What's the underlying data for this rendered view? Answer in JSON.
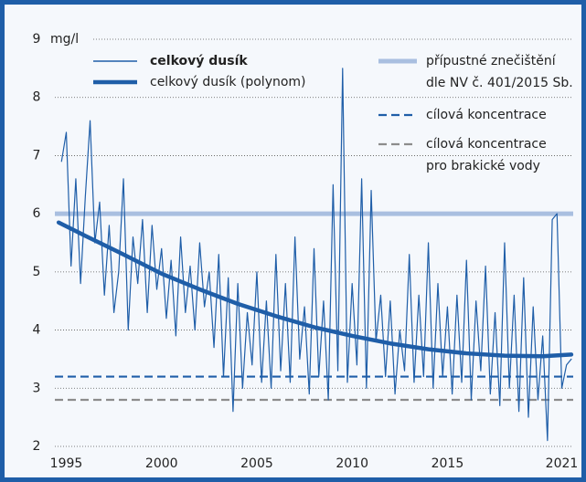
{
  "chart_data": {
    "type": "line",
    "y_unit": "mg/l",
    "xlim": [
      1994.4,
      2021.6
    ],
    "xticks": [
      1995,
      2000,
      2005,
      2010,
      2015,
      2021
    ],
    "ylim": [
      2,
      9
    ],
    "yticks": [
      2,
      3,
      4,
      5,
      6,
      7,
      8,
      9
    ],
    "grid": true,
    "series": [
      {
        "name": "celkový dusík",
        "color": "#1f5ea8",
        "x": [
          1994.75,
          1995.0,
          1995.25,
          1995.5,
          1995.75,
          1996.0,
          1996.25,
          1996.5,
          1996.75,
          1997.0,
          1997.25,
          1997.5,
          1997.75,
          1998.0,
          1998.25,
          1998.5,
          1998.75,
          1999.0,
          1999.25,
          1999.5,
          1999.75,
          2000.0,
          2000.25,
          2000.5,
          2000.75,
          2001.0,
          2001.25,
          2001.5,
          2001.75,
          2002.0,
          2002.25,
          2002.5,
          2002.75,
          2003.0,
          2003.25,
          2003.5,
          2003.75,
          2004.0,
          2004.25,
          2004.5,
          2004.75,
          2005.0,
          2005.25,
          2005.5,
          2005.75,
          2006.0,
          2006.25,
          2006.5,
          2006.75,
          2007.0,
          2007.25,
          2007.5,
          2007.75,
          2008.0,
          2008.25,
          2008.5,
          2008.75,
          2009.0,
          2009.25,
          2009.5,
          2009.75,
          2010.0,
          2010.25,
          2010.5,
          2010.75,
          2011.0,
          2011.25,
          2011.5,
          2011.75,
          2012.0,
          2012.25,
          2012.5,
          2012.75,
          2013.0,
          2013.25,
          2013.5,
          2013.75,
          2014.0,
          2014.25,
          2014.5,
          2014.75,
          2015.0,
          2015.25,
          2015.5,
          2015.75,
          2016.0,
          2016.25,
          2016.5,
          2016.75,
          2017.0,
          2017.25,
          2017.5,
          2017.75,
          2018.0,
          2018.25,
          2018.5,
          2018.75,
          2019.0,
          2019.25,
          2019.5,
          2019.75,
          2020.0,
          2020.25,
          2020.5,
          2020.75,
          2021.0,
          2021.25,
          2021.5
        ],
        "values": [
          6.9,
          7.4,
          5.1,
          6.6,
          4.8,
          6.3,
          7.6,
          5.5,
          6.2,
          4.6,
          5.8,
          4.3,
          5.0,
          6.6,
          4.0,
          5.6,
          4.8,
          5.9,
          4.3,
          5.8,
          4.7,
          5.4,
          4.2,
          5.2,
          3.9,
          5.6,
          4.3,
          5.1,
          4.0,
          5.5,
          4.4,
          5.0,
          3.7,
          5.3,
          3.2,
          4.9,
          2.6,
          4.8,
          3.0,
          4.3,
          3.4,
          5.0,
          3.1,
          4.5,
          3.0,
          5.3,
          3.3,
          4.8,
          3.1,
          5.6,
          3.5,
          4.4,
          2.9,
          5.4,
          3.2,
          4.5,
          2.8,
          6.5,
          3.3,
          8.5,
          3.1,
          4.8,
          3.4,
          6.6,
          3.0,
          6.4,
          3.8,
          4.6,
          3.2,
          4.5,
          2.9,
          4.0,
          3.3,
          5.3,
          3.1,
          4.6,
          3.2,
          5.5,
          3.0,
          4.8,
          3.2,
          4.4,
          2.9,
          4.6,
          3.1,
          5.2,
          2.8,
          4.5,
          3.3,
          5.1,
          2.9,
          4.3,
          2.7,
          5.5,
          3.0,
          4.6,
          2.6,
          4.9,
          2.5,
          4.4,
          2.8,
          3.9,
          2.1,
          5.9,
          6.0,
          3.0,
          3.4,
          3.5
        ]
      },
      {
        "name": "celkový dusík (polynom)",
        "color": "#1f5ea8",
        "x": [
          1994.6,
          1996,
          1998,
          2000,
          2002,
          2004,
          2006,
          2008,
          2010,
          2012,
          2014,
          2016,
          2018,
          2020,
          2021.5
        ],
        "values": [
          5.85,
          5.62,
          5.3,
          4.97,
          4.7,
          4.45,
          4.24,
          4.05,
          3.9,
          3.77,
          3.67,
          3.6,
          3.56,
          3.55,
          3.58
        ]
      }
    ],
    "reference_lines": [
      {
        "name": "přípustné znečištění\ndle NV č. 401/2015 Sb.",
        "value": 6,
        "color": "#a9bfe0",
        "dashed": false
      },
      {
        "name": "cílová koncentrace",
        "value": 3.2,
        "color": "#1f5ea8",
        "dashed": true
      },
      {
        "name": "cílová koncentrace\npro brakické vody",
        "value": 2.8,
        "color": "#8c8c8c",
        "dashed": true
      }
    ]
  }
}
